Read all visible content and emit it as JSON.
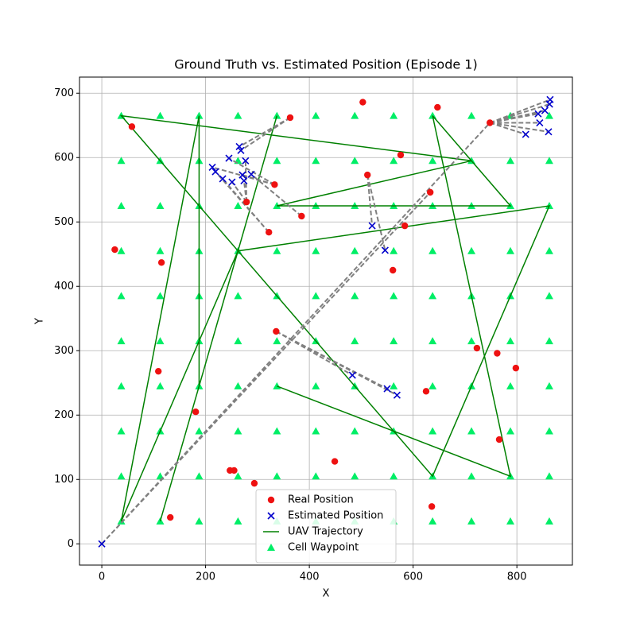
{
  "chart_data": {
    "type": "scatter",
    "title": "Ground Truth vs. Estimated Position (Episode 1)",
    "x_label": "X",
    "y_label": "Y",
    "xlim": [
      -43,
      907
    ],
    "ylim": [
      -33,
      725
    ],
    "xticks": [
      0,
      200,
      400,
      600,
      800
    ],
    "yticks": [
      0,
      100,
      200,
      300,
      400,
      500,
      600,
      700
    ],
    "grid": true,
    "legend": "lower center",
    "series": [
      {
        "name": "Cell Waypoint",
        "color": "#00ee66",
        "marker": "^",
        "x": [
          37.5,
          112.5,
          187.5,
          262.5,
          337.5,
          412.5,
          487.5,
          562.5,
          637.5,
          712.5,
          787.5,
          862.5,
          37.5,
          112.5,
          187.5,
          262.5,
          337.5,
          412.5,
          487.5,
          562.5,
          637.5,
          712.5,
          787.5,
          862.5,
          37.5,
          112.5,
          187.5,
          262.5,
          337.5,
          412.5,
          487.5,
          562.5,
          637.5,
          712.5,
          787.5,
          862.5,
          37.5,
          112.5,
          187.5,
          262.5,
          337.5,
          412.5,
          487.5,
          562.5,
          637.5,
          712.5,
          787.5,
          862.5,
          37.5,
          112.5,
          187.5,
          262.5,
          337.5,
          412.5,
          487.5,
          562.5,
          637.5,
          712.5,
          787.5,
          862.5,
          37.5,
          112.5,
          187.5,
          262.5,
          337.5,
          412.5,
          487.5,
          562.5,
          637.5,
          712.5,
          787.5,
          862.5,
          37.5,
          112.5,
          187.5,
          262.5,
          337.5,
          412.5,
          487.5,
          562.5,
          637.5,
          712.5,
          787.5,
          862.5,
          37.5,
          112.5,
          187.5,
          262.5,
          337.5,
          412.5,
          487.5,
          562.5,
          637.5,
          712.5,
          787.5,
          862.5,
          37.5,
          112.5,
          187.5,
          262.5,
          337.5,
          412.5,
          487.5,
          562.5,
          637.5,
          712.5,
          787.5,
          862.5,
          37.5,
          112.5,
          187.5,
          262.5,
          337.5,
          412.5,
          487.5,
          562.5,
          637.5,
          712.5,
          787.5,
          862.5
        ],
        "values": [
          35,
          35,
          35,
          35,
          35,
          35,
          35,
          35,
          35,
          35,
          35,
          35,
          105,
          105,
          105,
          105,
          105,
          105,
          105,
          105,
          105,
          105,
          105,
          105,
          175,
          175,
          175,
          175,
          175,
          175,
          175,
          175,
          175,
          175,
          175,
          175,
          245,
          245,
          245,
          245,
          245,
          245,
          245,
          245,
          245,
          245,
          245,
          245,
          315,
          315,
          315,
          315,
          315,
          315,
          315,
          315,
          315,
          315,
          315,
          315,
          385,
          385,
          385,
          385,
          385,
          385,
          385,
          385,
          385,
          385,
          385,
          385,
          455,
          455,
          455,
          455,
          455,
          455,
          455,
          455,
          455,
          455,
          455,
          455,
          525,
          525,
          525,
          525,
          525,
          525,
          525,
          525,
          525,
          525,
          525,
          525,
          595,
          595,
          595,
          595,
          595,
          595,
          595,
          595,
          595,
          595,
          595,
          595,
          665,
          665,
          665,
          665,
          665,
          665,
          665,
          665,
          665,
          665,
          665,
          665
        ]
      },
      {
        "name": "UAV Trajectory",
        "color": "#008000",
        "marker": "line",
        "x": [
          112.5,
          337.5,
          187.5,
          187.5,
          37.5,
          262.5,
          862.5,
          637.5,
          37.5,
          712.5,
          337.5,
          787.5,
          637.5,
          787.5,
          337.5
        ],
        "values": [
          35,
          665,
          245,
          665,
          35,
          455,
          525,
          105,
          665,
          595,
          525,
          525,
          665,
          105,
          245
        ]
      },
      {
        "color": "#808080",
        "marker": "dashed",
        "x": [
          748,
          864,
          null,
          748,
          863,
          null,
          748,
          854,
          null,
          748,
          841,
          null,
          748,
          844,
          null,
          748,
          861,
          null,
          748,
          817,
          null,
          0,
          748,
          null,
          0,
          633,
          null,
          363,
          265,
          null,
          363,
          268,
          null,
          333,
          245,
          null,
          333,
          213,
          null,
          333,
          271,
          null,
          279,
          277,
          null,
          279,
          274,
          null,
          279,
          251,
          null,
          385,
          288,
          null,
          322,
          219,
          null,
          322,
          233,
          null,
          512,
          521,
          null,
          512,
          546,
          null,
          336,
          483,
          null,
          336,
          550,
          null,
          336,
          569
        ],
        "values": [
          654,
          690,
          null,
          654,
          683,
          null,
          654,
          673,
          null,
          654,
          668,
          null,
          654,
          654,
          null,
          654,
          640,
          null,
          654,
          636,
          null,
          0,
          654,
          null,
          0,
          546,
          null,
          662,
          617,
          null,
          662,
          611,
          null,
          558,
          599,
          null,
          558,
          585,
          null,
          558,
          573,
          null,
          531,
          595,
          null,
          531,
          564,
          null,
          531,
          562,
          null,
          509,
          574,
          null,
          484,
          578,
          null,
          484,
          567,
          null,
          573,
          494,
          null,
          573,
          456,
          null,
          330,
          262,
          null,
          330,
          241,
          null,
          330,
          231
        ]
      },
      {
        "name": "Real Position",
        "color": "#ee1111",
        "marker": "o",
        "x": [
          58,
          363,
          503,
          647,
          576,
          512,
          333,
          279,
          385,
          322,
          633,
          584,
          561,
          25,
          115,
          336,
          748,
          723,
          762,
          798,
          109,
          625,
          181,
          766,
          449,
          247,
          255,
          294,
          132,
          636
        ],
        "values": [
          648,
          662,
          686,
          678,
          604,
          573,
          558,
          531,
          509,
          484,
          546,
          494,
          425,
          457,
          437,
          330,
          654,
          304,
          296,
          273,
          268,
          237,
          205,
          162,
          128,
          114,
          114,
          94,
          41,
          58
        ]
      },
      {
        "name": "Estimated Position",
        "color": "#0000cc",
        "marker": "x",
        "x": [
          864,
          863,
          854,
          841,
          844,
          861,
          817,
          265,
          268,
          245,
          277,
          213,
          219,
          271,
          288,
          233,
          251,
          274,
          521,
          546,
          483,
          550,
          569,
          0
        ],
        "values": [
          690,
          683,
          673,
          668,
          654,
          640,
          636,
          617,
          611,
          599,
          595,
          585,
          578,
          573,
          574,
          567,
          562,
          564,
          494,
          456,
          262,
          241,
          231,
          0
        ]
      }
    ]
  }
}
